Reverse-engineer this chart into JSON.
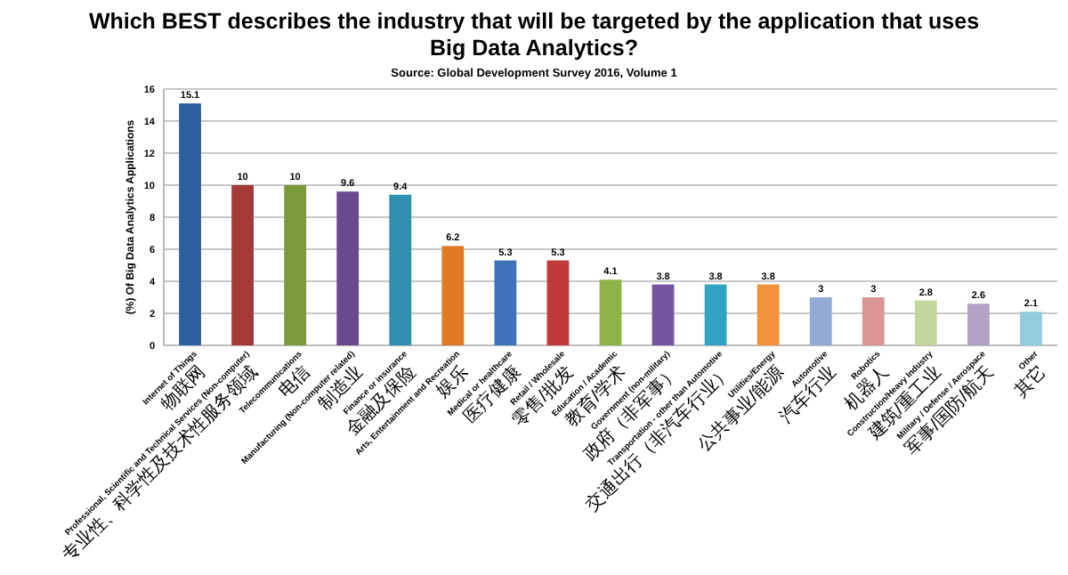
{
  "chart_data": {
    "type": "bar",
    "title": "Which BEST describes the industry that will be targeted by the application that uses Big Data Analytics?",
    "annotations": [
      "Source: Global Development Survey 2016, Volume 1"
    ],
    "ylabel": "(%) Of Big Data Analytics Applications",
    "categories": [
      "Internet of Things\n物联网",
      "Professional, Scientific and Technical Services (Non-computer)\n专业性、科学性及技术性服务领域",
      "Telecommunications\n电信",
      "Manufacturing (Non-computer related)\n制造业",
      "Finance or insurance\n金融及保险",
      "Arts, Entertainment and Recreation\n娱乐",
      "Medical or healthcare\n医疗健康",
      "Retail / Wholesale\n零售/批发",
      "Education / Academic\n教育/学术",
      "Government (non-military)\n政府（非军事）",
      "Transportation - other than Automotive\n交通出行（非汽车行业）",
      "Utilities/Energy\n公共事业/能源",
      "Automotive\n汽车行业",
      "Robotics\n机器人",
      "Construction/Heavy Industry\n建筑/重工业",
      "Military / Defense / Aerospace\n军事/国防/航天",
      "Other\n其它"
    ],
    "values": [
      15.1,
      10,
      10,
      9.6,
      9.4,
      6.2,
      5.3,
      5.3,
      4.1,
      3.8,
      3.8,
      3.8,
      3,
      3,
      2.8,
      2.6,
      2.1
    ],
    "colors": [
      "#2e5fa1",
      "#a23a37",
      "#7b9a3a",
      "#6a4a8e",
      "#2f8fae",
      "#e07b25",
      "#3f72b8",
      "#c0393b",
      "#8db446",
      "#7355a0",
      "#33a3c4",
      "#f4923a",
      "#93a9d6",
      "#d99694",
      "#c3d69b",
      "#b3a2c7",
      "#93cddd"
    ],
    "ylim": [
      0,
      16
    ],
    "yticks": [
      0,
      2,
      4,
      6,
      8,
      10,
      12,
      14,
      16
    ],
    "grid": "y",
    "data_labels": true
  }
}
